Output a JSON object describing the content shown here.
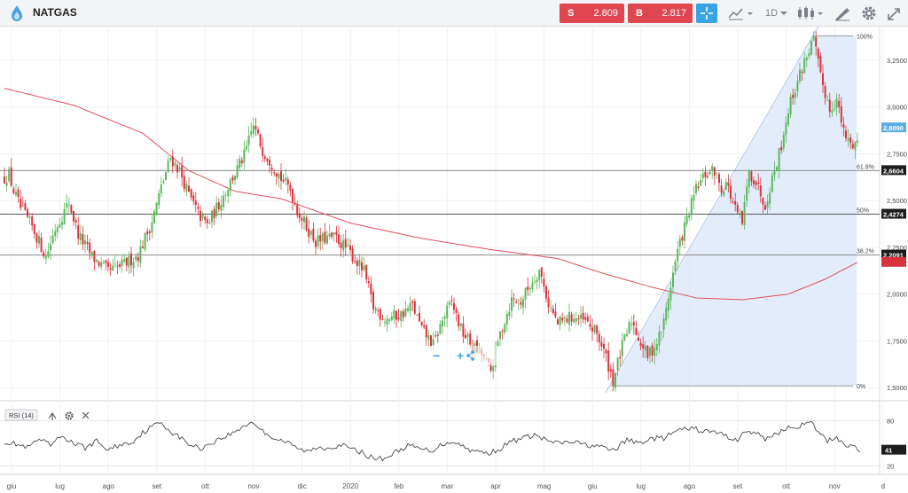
{
  "toolbar": {
    "title": "NATGAS",
    "sell_label": "S",
    "sell_price": "2.809",
    "buy_label": "B",
    "buy_price": "2.817",
    "timeframe": "1D",
    "icons": [
      "natgas-logo-icon",
      "crosshair-icon",
      "chart-type-icon",
      "candles-icon",
      "draw-icon",
      "gear-icon",
      "fullscreen-icon"
    ]
  },
  "rsi_panel": {
    "label": "RSI (14)",
    "value": "41",
    "levels": [
      "80",
      "20"
    ]
  },
  "zoom_controls": {
    "minus": "−",
    "plus": "+"
  },
  "colors": {
    "up": "#5cb85c",
    "down": "#d9343d",
    "ma": "#e0505a",
    "fib_fill": "#c9dcf5",
    "sell": "#e0464f",
    "buy": "#e0464f",
    "accent": "#3aa3e3"
  },
  "chart_data": {
    "type": "candlestick",
    "instrument": "NATGAS",
    "x_ticks": [
      "giu",
      "lug",
      "ago",
      "set",
      "ott",
      "nov",
      "dic",
      "2020",
      "feb",
      "mar",
      "apr",
      "mag",
      "giu",
      "lug",
      "ago",
      "set",
      "ott",
      "nov",
      "d"
    ],
    "x_tick_index": [
      0,
      21,
      42,
      63,
      84,
      105,
      126,
      147,
      168,
      189,
      210,
      231,
      252,
      273,
      294,
      315,
      336,
      357,
      378
    ],
    "ylim": [
      1.43,
      3.43
    ],
    "y_ticks": [
      "3,2500",
      "3,0000",
      "2,7500",
      "2,5000",
      "2,2500",
      "2,0000",
      "1,7500",
      "1,5000"
    ],
    "y_tick_values": [
      3.25,
      3.0,
      2.75,
      2.5,
      2.25,
      2.0,
      1.75,
      1.5
    ],
    "price_anchors": [
      [
        0,
        2.62
      ],
      [
        2,
        2.64
      ],
      [
        4,
        2.55
      ],
      [
        7,
        2.46
      ],
      [
        12,
        2.36
      ],
      [
        18,
        2.2
      ],
      [
        22,
        2.35
      ],
      [
        28,
        2.49
      ],
      [
        32,
        2.32
      ],
      [
        38,
        2.2
      ],
      [
        45,
        2.12
      ],
      [
        52,
        2.16
      ],
      [
        58,
        2.21
      ],
      [
        64,
        2.39
      ],
      [
        68,
        2.57
      ],
      [
        72,
        2.73
      ],
      [
        76,
        2.66
      ],
      [
        80,
        2.53
      ],
      [
        84,
        2.43
      ],
      [
        88,
        2.37
      ],
      [
        93,
        2.48
      ],
      [
        98,
        2.6
      ],
      [
        104,
        2.74
      ],
      [
        108,
        2.9
      ],
      [
        112,
        2.77
      ],
      [
        116,
        2.7
      ],
      [
        120,
        2.62
      ],
      [
        124,
        2.56
      ],
      [
        127,
        2.45
      ],
      [
        131,
        2.36
      ],
      [
        135,
        2.28
      ],
      [
        140,
        2.3
      ],
      [
        144,
        2.3
      ],
      [
        150,
        2.22
      ],
      [
        156,
        2.12
      ],
      [
        160,
        1.93
      ],
      [
        165,
        1.87
      ],
      [
        172,
        1.89
      ],
      [
        177,
        1.94
      ],
      [
        181,
        1.81
      ],
      [
        186,
        1.73
      ],
      [
        190,
        1.86
      ],
      [
        194,
        1.96
      ],
      [
        198,
        1.81
      ],
      [
        203,
        1.72
      ],
      [
        207,
        1.68
      ],
      [
        211,
        1.59
      ],
      [
        215,
        1.79
      ],
      [
        220,
        1.97
      ],
      [
        224,
        1.96
      ],
      [
        228,
        2.05
      ],
      [
        232,
        2.13
      ],
      [
        236,
        1.95
      ],
      [
        240,
        1.84
      ],
      [
        246,
        1.88
      ],
      [
        252,
        1.85
      ],
      [
        257,
        1.79
      ],
      [
        261,
        1.66
      ],
      [
        264,
        1.54
      ],
      [
        268,
        1.72
      ],
      [
        272,
        1.86
      ],
      [
        276,
        1.74
      ],
      [
        279,
        1.67
      ],
      [
        283,
        1.74
      ],
      [
        286,
        1.85
      ],
      [
        289,
        2.05
      ],
      [
        292,
        2.23
      ],
      [
        296,
        2.4
      ],
      [
        300,
        2.56
      ],
      [
        304,
        2.64
      ],
      [
        308,
        2.66
      ],
      [
        311,
        2.56
      ],
      [
        313,
        2.6
      ],
      [
        317,
        2.45
      ],
      [
        320,
        2.38
      ],
      [
        323,
        2.65
      ],
      [
        326,
        2.6
      ],
      [
        330,
        2.48
      ],
      [
        333,
        2.62
      ],
      [
        337,
        2.8
      ],
      [
        340,
        2.99
      ],
      [
        344,
        3.14
      ],
      [
        348,
        3.28
      ],
      [
        351,
        3.36
      ],
      [
        354,
        3.16
      ],
      [
        358,
        2.99
      ],
      [
        361,
        3.04
      ],
      [
        364,
        2.86
      ],
      [
        367,
        2.8
      ],
      [
        370,
        2.82
      ]
    ],
    "ma_anchors": [
      [
        0,
        3.1
      ],
      [
        30,
        3.01
      ],
      [
        60,
        2.86
      ],
      [
        80,
        2.66
      ],
      [
        100,
        2.55
      ],
      [
        120,
        2.51
      ],
      [
        150,
        2.38
      ],
      [
        180,
        2.3
      ],
      [
        210,
        2.24
      ],
      [
        240,
        2.19
      ],
      [
        260,
        2.11
      ],
      [
        280,
        2.04
      ],
      [
        300,
        1.98
      ],
      [
        320,
        1.97
      ],
      [
        340,
        2.0
      ],
      [
        356,
        2.08
      ],
      [
        370,
        2.17
      ]
    ],
    "horizontal_levels": [
      {
        "value": 2.6604,
        "label": "2,6604",
        "fib": "61.8%"
      },
      {
        "value": 2.4274,
        "label": "2,4274",
        "fib": "50%"
      },
      {
        "value": 2.2091,
        "label": "2,2091",
        "fib": "38.2%"
      }
    ],
    "fib_retracement": {
      "start": {
        "index": 263,
        "value": 1.51,
        "label": "0%"
      },
      "end": {
        "index": 351,
        "value": 3.38,
        "label": "100%"
      }
    },
    "current_price": {
      "value": 2.889,
      "label": "2,8890"
    },
    "rsi": {
      "ylim": [
        10,
        90
      ],
      "levels": [
        80,
        20
      ],
      "anchors": [
        [
          0,
          52
        ],
        [
          5,
          49
        ],
        [
          10,
          44
        ],
        [
          15,
          55
        ],
        [
          20,
          47
        ],
        [
          25,
          60
        ],
        [
          30,
          50
        ],
        [
          35,
          44
        ],
        [
          40,
          53
        ],
        [
          45,
          41
        ],
        [
          50,
          48
        ],
        [
          55,
          51
        ],
        [
          60,
          64
        ],
        [
          65,
          74
        ],
        [
          68,
          78
        ],
        [
          72,
          66
        ],
        [
          76,
          58
        ],
        [
          80,
          49
        ],
        [
          85,
          43
        ],
        [
          90,
          51
        ],
        [
          95,
          58
        ],
        [
          100,
          65
        ],
        [
          104,
          74
        ],
        [
          108,
          78
        ],
        [
          112,
          66
        ],
        [
          117,
          57
        ],
        [
          122,
          52
        ],
        [
          128,
          42
        ],
        [
          132,
          39
        ],
        [
          136,
          45
        ],
        [
          140,
          44
        ],
        [
          146,
          48
        ],
        [
          150,
          43
        ],
        [
          155,
          38
        ],
        [
          160,
          30
        ],
        [
          165,
          30
        ],
        [
          170,
          39
        ],
        [
          175,
          47
        ],
        [
          180,
          43
        ],
        [
          185,
          40
        ],
        [
          190,
          49
        ],
        [
          195,
          53
        ],
        [
          200,
          44
        ],
        [
          205,
          39
        ],
        [
          210,
          37
        ],
        [
          215,
          43
        ],
        [
          220,
          53
        ],
        [
          225,
          57
        ],
        [
          230,
          61
        ],
        [
          235,
          54
        ],
        [
          240,
          50
        ],
        [
          246,
          52
        ],
        [
          252,
          48
        ],
        [
          258,
          46
        ],
        [
          262,
          41
        ],
        [
          266,
          44
        ],
        [
          270,
          55
        ],
        [
          275,
          50
        ],
        [
          280,
          56
        ],
        [
          286,
          57
        ],
        [
          292,
          67
        ],
        [
          298,
          70
        ],
        [
          304,
          66
        ],
        [
          310,
          64
        ],
        [
          314,
          58
        ],
        [
          318,
          55
        ],
        [
          322,
          67
        ],
        [
          326,
          63
        ],
        [
          330,
          56
        ],
        [
          334,
          62
        ],
        [
          338,
          68
        ],
        [
          342,
          72
        ],
        [
          346,
          74
        ],
        [
          350,
          77
        ],
        [
          353,
          65
        ],
        [
          357,
          53
        ],
        [
          361,
          58
        ],
        [
          365,
          48
        ],
        [
          369,
          45
        ],
        [
          371,
          41
        ]
      ]
    }
  }
}
